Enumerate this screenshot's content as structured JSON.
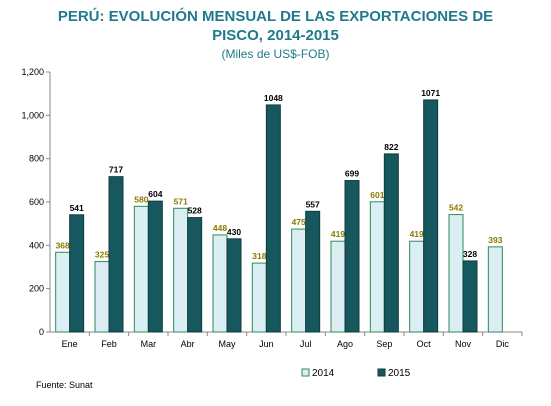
{
  "chart_data": {
    "type": "bar",
    "title_line1": "PERÚ: EVOLUCIÓN MENSUAL DE LAS EXPORTACIONES DE",
    "title_line2": "PISCO, 2014-2015",
    "subtitle": "(Miles de US$-FOB)",
    "categories": [
      "Ene",
      "Feb",
      "Mar",
      "Abr",
      "May",
      "Jun",
      "Jul",
      "Ago",
      "Sep",
      "Oct",
      "Nov",
      "Dic"
    ],
    "series": [
      {
        "name": "2014",
        "color": "#daeef3",
        "stroke": "#2e8b57",
        "label_color": "#8b7a00",
        "values": [
          368,
          325,
          580,
          571,
          448,
          318,
          475,
          419,
          601,
          419,
          542,
          393
        ],
        "labels": [
          "368",
          "325",
          "580",
          "571",
          "448",
          "318",
          "475",
          "419",
          "601",
          "419",
          "542",
          "393"
        ]
      },
      {
        "name": "2015",
        "color": "#17585f",
        "stroke": "#0f3b40",
        "label_color": "#000000",
        "values": [
          541,
          717,
          604,
          528,
          430,
          1048,
          557,
          699,
          822,
          1071,
          328,
          null
        ],
        "labels": [
          "541",
          "717",
          "604",
          "528",
          "430",
          "1048",
          "557",
          "699",
          "822",
          "1071",
          "328",
          null
        ]
      }
    ],
    "yticks": [
      "0",
      "200",
      "400",
      "600",
      "800",
      "1,000",
      "1,200"
    ],
    "ylim": [
      0,
      1200
    ],
    "grid": false,
    "legend_position": "bottom-right"
  },
  "footer": {
    "source": "Fuente: Sunat"
  }
}
